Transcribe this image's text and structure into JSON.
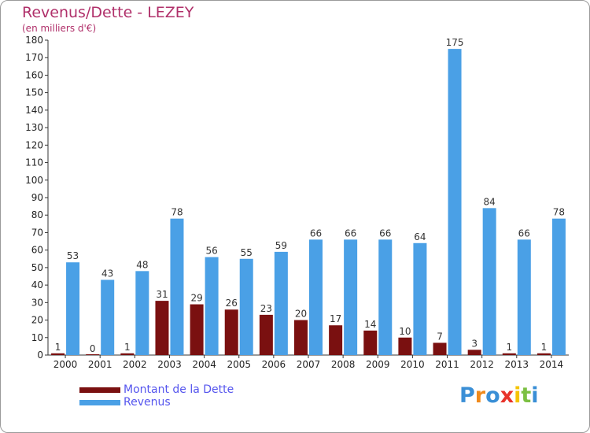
{
  "title": "Revenus/Dette - LEZEY",
  "subtitle": "(en milliers d'€)",
  "chart_data": {
    "type": "bar",
    "categories": [
      "2000",
      "2001",
      "2002",
      "2003",
      "2004",
      "2005",
      "2006",
      "2007",
      "2008",
      "2009",
      "2010",
      "2011",
      "2012",
      "2013",
      "2014"
    ],
    "series": [
      {
        "name": "Montant de la Dette",
        "color": "#7a1010",
        "values": [
          1,
          0,
          1,
          31,
          29,
          26,
          23,
          20,
          17,
          14,
          10,
          7,
          3,
          1,
          1
        ]
      },
      {
        "name": "Revenus",
        "color": "#4aa0e6",
        "values": [
          53,
          43,
          48,
          78,
          56,
          55,
          59,
          66,
          66,
          66,
          64,
          175,
          84,
          66,
          78
        ]
      }
    ],
    "yticks": [
      0,
      10,
      20,
      30,
      40,
      50,
      60,
      70,
      80,
      90,
      100,
      110,
      120,
      130,
      140,
      150,
      160,
      170,
      180
    ],
    "ylim": [
      0,
      180
    ],
    "grid": false,
    "legend_position": "bottom-left"
  },
  "legend": [
    {
      "label": "Montant de la Dette",
      "color": "#7a1010"
    },
    {
      "label": "Revenus",
      "color": "#4aa0e6"
    }
  ],
  "logo": {
    "letters": [
      "P",
      "r",
      "o",
      "x",
      "i",
      "t",
      "i"
    ],
    "colors": [
      "#3a8fd6",
      "#f08a1c",
      "#3a8fd6",
      "#e8332a",
      "#f5c400",
      "#7cc043",
      "#3a8fd6"
    ]
  }
}
